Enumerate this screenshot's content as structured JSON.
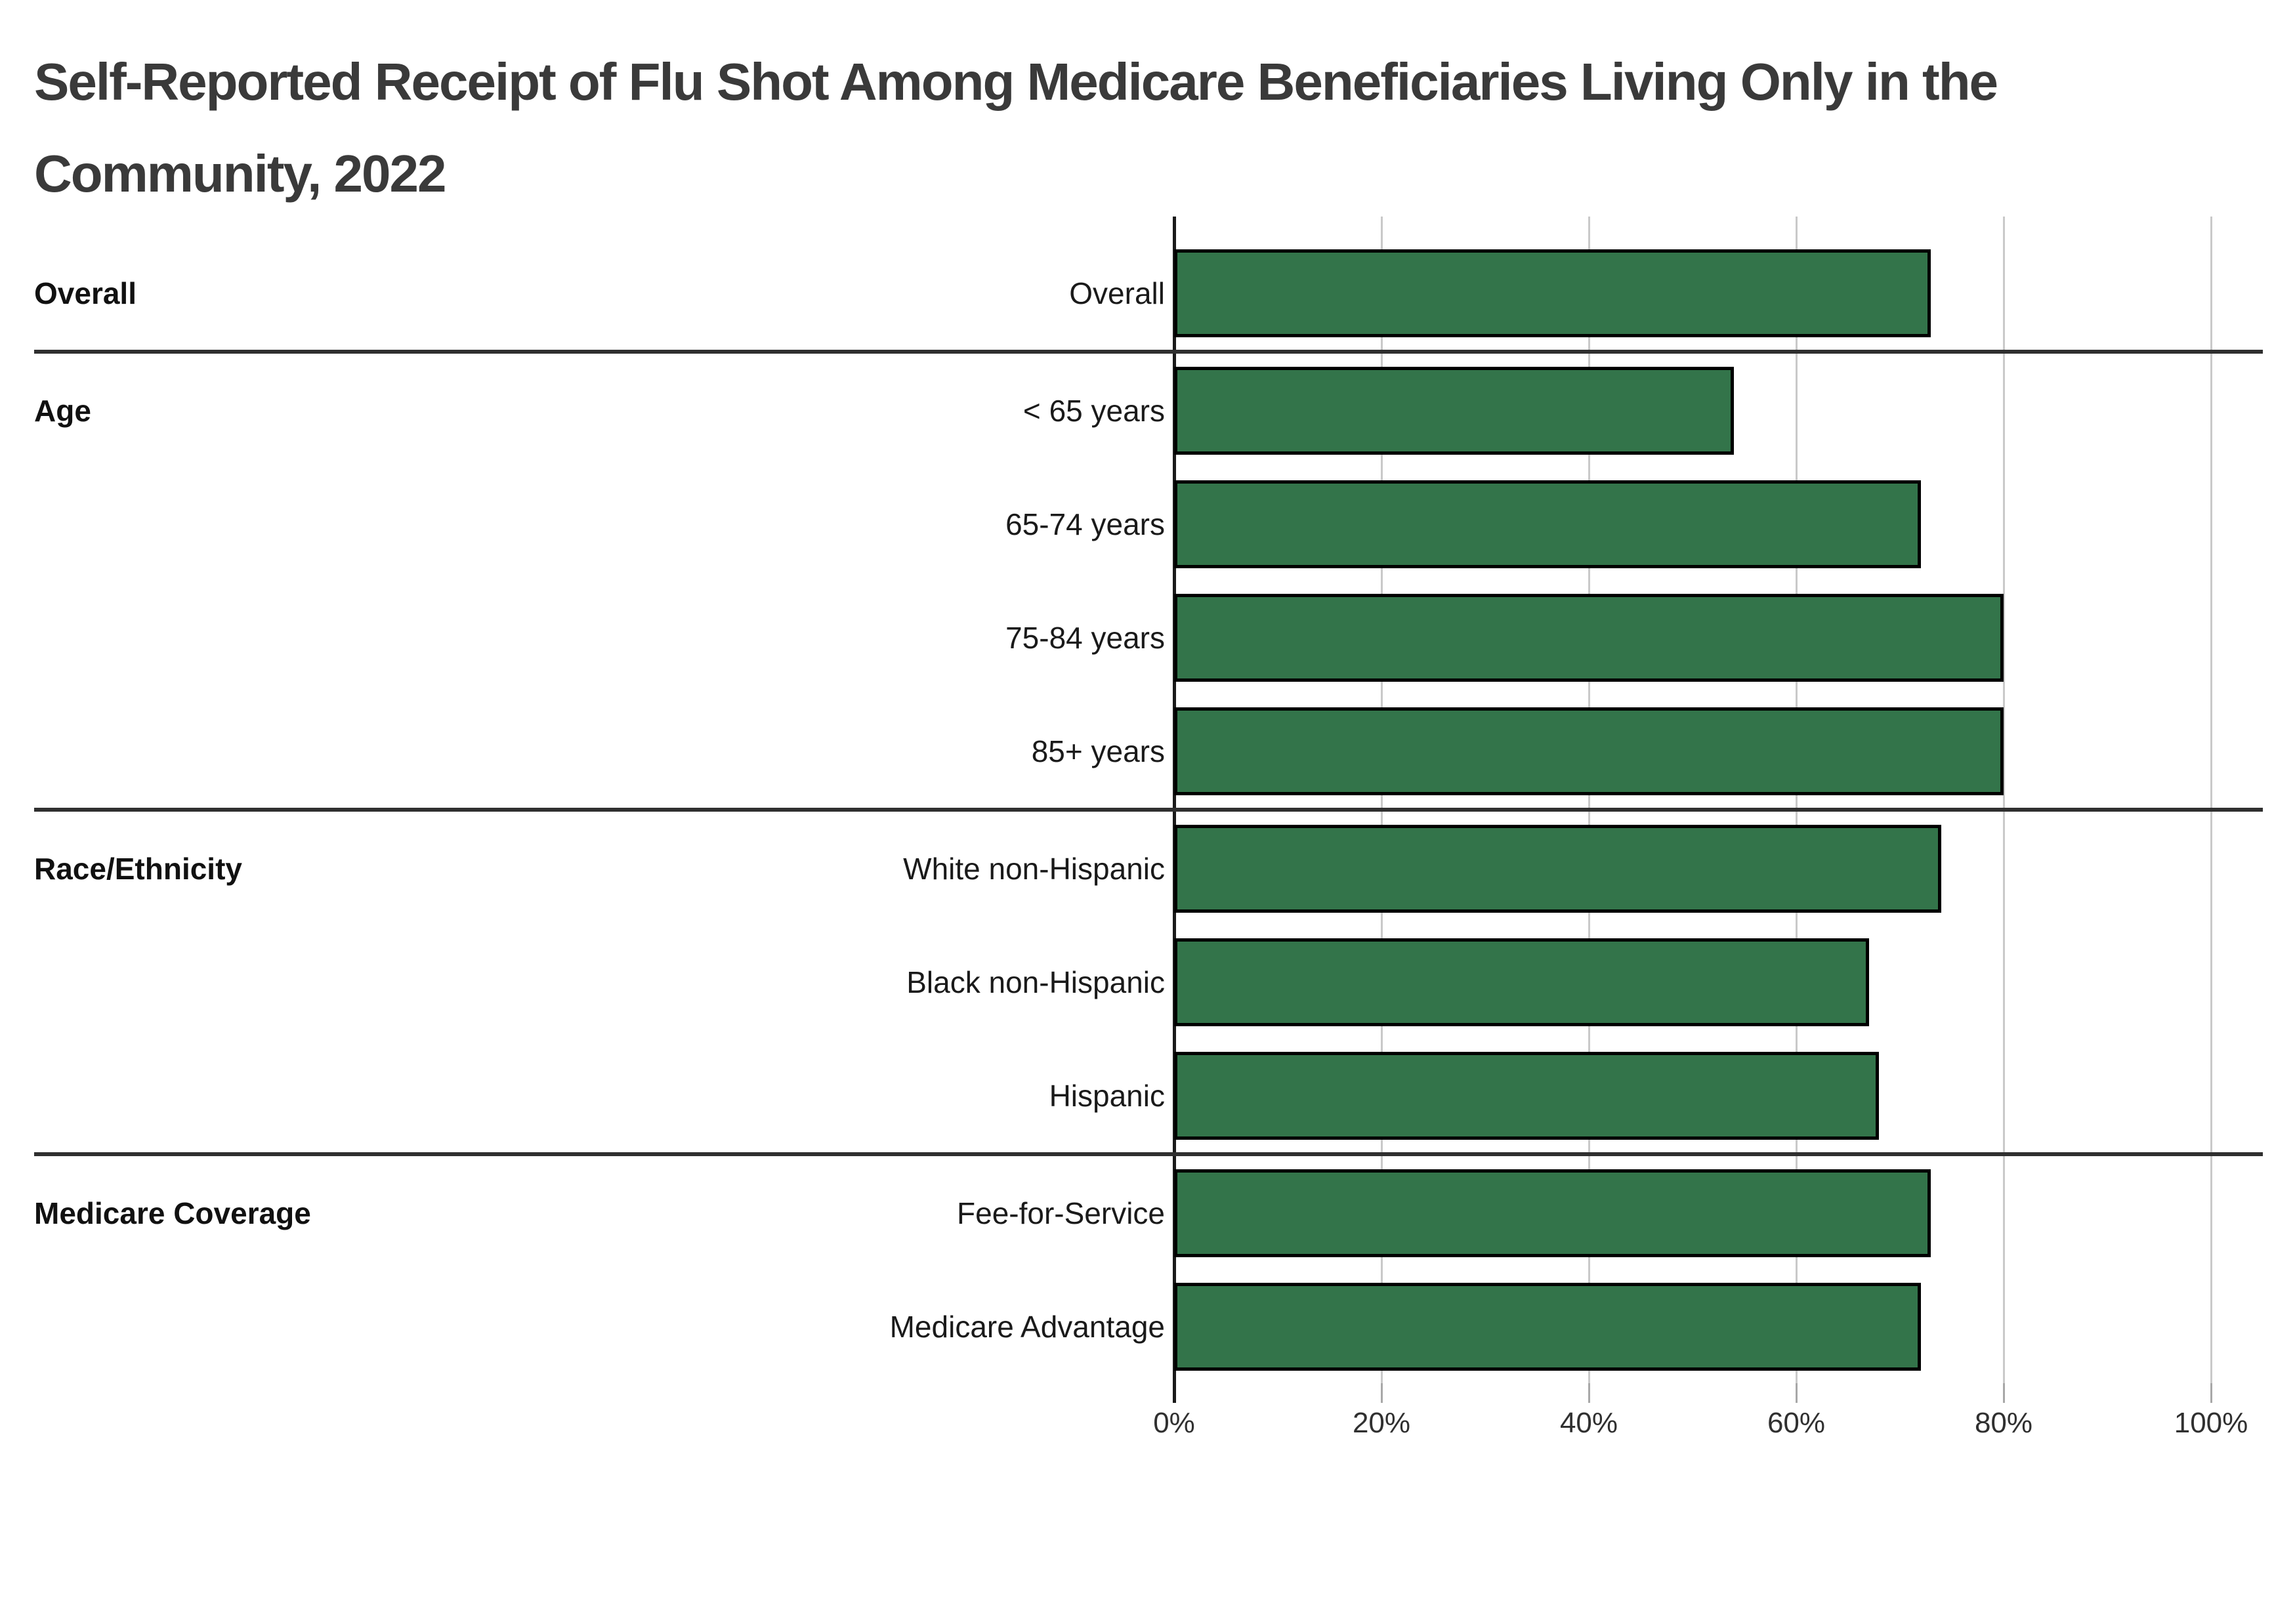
{
  "title": {
    "line1": "Self-Reported Receipt of Flu Shot Among Medicare Beneficiaries Living Only in the",
    "line2": "Community, 2022"
  },
  "axis": {
    "ticks": [
      "0%",
      "20%",
      "40%",
      "60%",
      "80%",
      "100%"
    ],
    "min": 0,
    "max": 100
  },
  "colors": {
    "bar_fill": "#33744A",
    "bar_border": "#000000",
    "gridline": "#c9c9c9",
    "zero_axis": "#1a1a1a",
    "separator": "#2f2f2f",
    "title_text": "#3a3a3a",
    "label_text": "#1a1a1a",
    "tick_text": "#303030"
  },
  "chart_data": {
    "type": "bar",
    "orientation": "horizontal",
    "title": "Self-Reported Receipt of Flu Shot Among Medicare Beneficiaries Living Only in the Community, 2022",
    "xlabel": "",
    "ylabel": "",
    "xlim": [
      0,
      100
    ],
    "x_ticks": [
      "0%",
      "20%",
      "40%",
      "60%",
      "80%",
      "100%"
    ],
    "grid": true,
    "legend": false,
    "unit": "percent",
    "groups": [
      {
        "group": "Overall",
        "items": [
          {
            "label": "Overall",
            "value": 73
          }
        ]
      },
      {
        "group": "Age",
        "items": [
          {
            "label": "< 65 years",
            "value": 54
          },
          {
            "label": "65-74 years",
            "value": 72
          },
          {
            "label": "75-84 years",
            "value": 80
          },
          {
            "label": "85+ years",
            "value": 80
          }
        ]
      },
      {
        "group": "Race/Ethnicity",
        "items": [
          {
            "label": "White non-Hispanic",
            "value": 74
          },
          {
            "label": "Black non-Hispanic",
            "value": 67
          },
          {
            "label": "Hispanic",
            "value": 68
          }
        ]
      },
      {
        "group": "Medicare Coverage",
        "items": [
          {
            "label": "Fee-for-Service",
            "value": 73
          },
          {
            "label": "Medicare Advantage",
            "value": 72
          }
        ]
      }
    ]
  }
}
